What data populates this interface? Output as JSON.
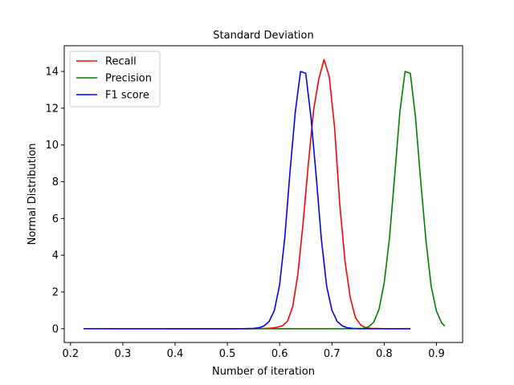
{
  "chart_data": {
    "type": "line",
    "title": "Standard Deviation",
    "xlabel": "Number of iteration",
    "ylabel": "Normal Distribution",
    "xlim": [
      0.188,
      0.95
    ],
    "ylim": [
      -0.75,
      15.4
    ],
    "xticks": [
      0.2,
      0.3,
      0.4,
      0.5,
      0.6,
      0.7,
      0.8,
      0.9
    ],
    "xtick_labels": [
      "0.2",
      "0.3",
      "0.4",
      "0.5",
      "0.6",
      "0.7",
      "0.8",
      "0.9"
    ],
    "yticks": [
      0,
      2,
      4,
      6,
      8,
      10,
      12,
      14
    ],
    "ytick_labels": [
      "0",
      "2",
      "4",
      "6",
      "8",
      "10",
      "12",
      "14"
    ],
    "grid": false,
    "legend_position": "top-left",
    "series": [
      {
        "name": "Recall",
        "color": "#ff0000",
        "x": [
          0.272,
          0.52,
          0.54,
          0.555,
          0.565,
          0.575,
          0.585,
          0.595,
          0.605,
          0.615,
          0.625,
          0.635,
          0.645,
          0.655,
          0.665,
          0.675,
          0.685,
          0.695,
          0.705,
          0.715,
          0.725,
          0.735,
          0.745,
          0.755,
          0.765,
          0.775,
          0.785,
          0.8,
          0.82,
          0.85
        ],
        "y": [
          0,
          0,
          0,
          0,
          0.01,
          0.02,
          0.03,
          0.08,
          0.15,
          0.4,
          1.2,
          3.0,
          5.8,
          9.0,
          11.9,
          13.6,
          14.65,
          13.7,
          11.0,
          6.8,
          3.7,
          1.7,
          0.6,
          0.2,
          0.05,
          0.02,
          0.01,
          0,
          0,
          0
        ]
      },
      {
        "name": "Precision",
        "color": "#008000",
        "x": [
          0.385,
          0.7,
          0.74,
          0.76,
          0.77,
          0.78,
          0.79,
          0.8,
          0.81,
          0.82,
          0.83,
          0.84,
          0.85,
          0.86,
          0.87,
          0.88,
          0.89,
          0.9,
          0.91,
          0.916
        ],
        "y": [
          0,
          0,
          0,
          0.02,
          0.1,
          0.35,
          1.05,
          2.5,
          4.9,
          8.3,
          11.8,
          14.0,
          13.9,
          11.5,
          8.0,
          4.8,
          2.3,
          0.95,
          0.3,
          0.15
        ]
      },
      {
        "name": "F1 score",
        "color": "#0000ff",
        "x": [
          0.225,
          0.5,
          0.53,
          0.55,
          0.56,
          0.57,
          0.58,
          0.59,
          0.6,
          0.61,
          0.62,
          0.63,
          0.64,
          0.65,
          0.66,
          0.67,
          0.68,
          0.69,
          0.7,
          0.71,
          0.72,
          0.73,
          0.74,
          0.75,
          0.76,
          0.77,
          0.8,
          0.85
        ],
        "y": [
          0,
          0,
          0,
          0.02,
          0.05,
          0.15,
          0.4,
          1.0,
          2.4,
          5.0,
          8.6,
          11.8,
          14.0,
          13.9,
          11.5,
          8.3,
          4.8,
          2.3,
          1.0,
          0.4,
          0.15,
          0.05,
          0.02,
          0,
          0,
          0,
          0,
          0
        ]
      }
    ]
  }
}
